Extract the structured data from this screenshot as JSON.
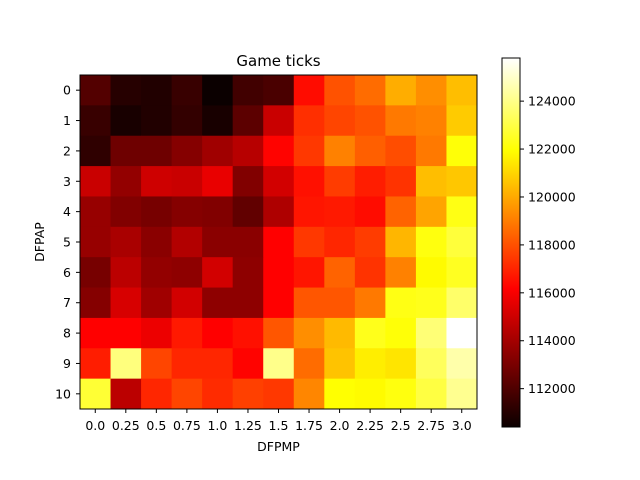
{
  "chart_data": {
    "type": "heatmap",
    "title": "Game ticks",
    "xlabel": "DFPMP",
    "ylabel": "DFPAP",
    "x_categories": [
      "0.0",
      "0.25",
      "0.5",
      "0.75",
      "1.0",
      "1.25",
      "1.5",
      "1.75",
      "2.0",
      "2.25",
      "2.5",
      "2.75",
      "3.0"
    ],
    "y_categories": [
      "0",
      "1",
      "2",
      "3",
      "4",
      "5",
      "6",
      "7",
      "8",
      "9",
      "10"
    ],
    "colormap": "hot",
    "color_range": [
      110400,
      125800
    ],
    "colorbar_ticks": [
      "112000",
      "114000",
      "116000",
      "118000",
      "120000",
      "122000",
      "124000"
    ],
    "colorbar_tick_values": [
      112000,
      114000,
      116000,
      118000,
      120000,
      122000,
      124000
    ],
    "values": [
      [
        112000,
        111000,
        110900,
        111400,
        110400,
        111600,
        111800,
        116300,
        117900,
        118500,
        120000,
        119300,
        120400
      ],
      [
        111400,
        110700,
        110900,
        111300,
        110700,
        112200,
        114600,
        117100,
        117600,
        117900,
        118800,
        119000,
        120700
      ],
      [
        111200,
        112600,
        112600,
        113100,
        113700,
        114200,
        116100,
        117300,
        119000,
        118200,
        117800,
        118800,
        122000
      ],
      [
        114600,
        113400,
        114700,
        114600,
        115300,
        113000,
        114800,
        116400,
        117400,
        116700,
        117200,
        120400,
        120600
      ],
      [
        113500,
        113000,
        112800,
        113100,
        113000,
        112300,
        114000,
        116500,
        116600,
        116300,
        118300,
        119800,
        122200
      ],
      [
        113500,
        113900,
        113200,
        114100,
        113200,
        113200,
        115900,
        117300,
        116900,
        117400,
        120200,
        122100,
        122800
      ],
      [
        112800,
        114300,
        113400,
        113300,
        114800,
        113300,
        116000,
        116500,
        118300,
        117200,
        119000,
        121800,
        122400
      ],
      [
        113100,
        114900,
        113700,
        114800,
        113300,
        113300,
        115800,
        118000,
        118000,
        118800,
        122200,
        122300,
        123500
      ],
      [
        115800,
        115900,
        115400,
        116600,
        116000,
        116400,
        118000,
        119300,
        120300,
        122300,
        122000,
        123700,
        125800
      ],
      [
        116700,
        123800,
        117600,
        116900,
        116900,
        116100,
        124000,
        118500,
        120500,
        121500,
        121300,
        123300,
        124500
      ],
      [
        122700,
        114300,
        116900,
        117600,
        117000,
        117500,
        117300,
        119100,
        121900,
        121800,
        122100,
        122900,
        124100
      ]
    ]
  }
}
